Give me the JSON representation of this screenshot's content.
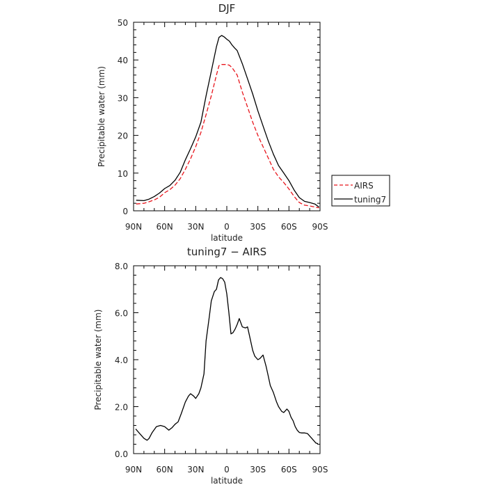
{
  "chart_data": [
    {
      "type": "line",
      "title": "DJF",
      "xlabel": "latitude",
      "ylabel": "Precipitable water (mm)",
      "xlim": [
        90,
        -90
      ],
      "ylim": [
        0,
        50
      ],
      "x_ticks": [
        90,
        60,
        30,
        0,
        -30,
        -60,
        -90
      ],
      "x_tick_labels": [
        "90N",
        "60N",
        "30N",
        "0",
        "30S",
        "60S",
        "90S"
      ],
      "y_ticks": [
        0,
        10,
        20,
        30,
        40,
        50
      ],
      "y_tick_labels": [
        "0",
        "10",
        "20",
        "30",
        "40",
        "50"
      ],
      "legend": "outside-right",
      "series": [
        {
          "name": "AIRS",
          "color": "#e8141b",
          "style": "dashed",
          "x": [
            87.5,
            80,
            75,
            70,
            65,
            60,
            55,
            50,
            45,
            40,
            35,
            30,
            25,
            20,
            15,
            10,
            7.5,
            5,
            2.5,
            0,
            -2.5,
            -5,
            -7.5,
            -10,
            -15,
            -20,
            -25,
            -30,
            -35,
            -40,
            -45,
            -50,
            -55,
            -60,
            -65,
            -70,
            -75,
            -80,
            -85,
            -89
          ],
          "y": [
            1.8,
            2.0,
            2.4,
            2.9,
            3.6,
            4.8,
            5.6,
            6.8,
            8.5,
            11.0,
            13.8,
            17.0,
            20.8,
            25.5,
            30.5,
            36.0,
            38.5,
            38.8,
            38.8,
            38.8,
            38.6,
            38.0,
            37.0,
            36.0,
            31.5,
            27.5,
            23.5,
            20.0,
            17.0,
            14.0,
            11.0,
            9.0,
            7.5,
            5.8,
            3.8,
            2.2,
            1.5,
            1.3,
            1.0,
            0.8
          ]
        },
        {
          "name": "tuning7",
          "color": "#000000",
          "style": "solid",
          "x": [
            87.5,
            80,
            75,
            70,
            65,
            60,
            55,
            50,
            45,
            40,
            35,
            30,
            25,
            20,
            15,
            10,
            7.5,
            5,
            2.5,
            0,
            -2.5,
            -5,
            -7.5,
            -10,
            -15,
            -20,
            -25,
            -30,
            -35,
            -40,
            -45,
            -50,
            -55,
            -60,
            -65,
            -70,
            -75,
            -80,
            -85,
            -89
          ],
          "y": [
            2.8,
            2.7,
            3.1,
            3.8,
            4.7,
            5.9,
            6.7,
            8.1,
            10.2,
            13.5,
            16.5,
            19.6,
            23.5,
            30.5,
            37.0,
            43.5,
            46.0,
            46.5,
            46.1,
            45.5,
            45.0,
            44.0,
            43.2,
            42.5,
            39.0,
            35.0,
            31.0,
            26.5,
            22.5,
            18.5,
            15.0,
            12.0,
            10.0,
            8.0,
            5.5,
            3.5,
            2.5,
            2.2,
            1.8,
            1.0
          ]
        }
      ]
    },
    {
      "type": "line",
      "title": "tuning7 − AIRS",
      "xlabel": "latitude",
      "ylabel": "Precipitable water (mm)",
      "xlim": [
        90,
        -90
      ],
      "ylim": [
        0,
        8
      ],
      "x_ticks": [
        90,
        60,
        30,
        0,
        -30,
        -60,
        -90
      ],
      "x_tick_labels": [
        "90N",
        "60N",
        "30N",
        "0",
        "30S",
        "60S",
        "90S"
      ],
      "y_ticks": [
        0,
        2,
        4,
        6,
        8
      ],
      "y_tick_labels": [
        "0.0",
        "2.0",
        "4.0",
        "6.0",
        "8.0"
      ],
      "series": [
        {
          "color": "#000000",
          "style": "solid",
          "x": [
            88,
            84,
            80,
            77,
            75,
            72,
            68,
            64,
            60,
            56,
            53,
            50,
            47,
            44,
            40,
            37,
            35,
            32,
            30,
            27,
            25,
            22,
            20,
            17,
            15,
            12,
            10,
            8,
            6,
            4,
            2,
            0,
            -2,
            -4,
            -6,
            -8,
            -10,
            -12,
            -15,
            -18,
            -20,
            -22,
            -25,
            -27,
            -30,
            -32,
            -35,
            -38,
            -40,
            -42,
            -45,
            -48,
            -50,
            -53,
            -55,
            -58,
            -60,
            -62,
            -64,
            -66,
            -68,
            -70,
            -72,
            -75,
            -78,
            -82,
            -84,
            -86,
            -88
          ],
          "y": [
            1.05,
            0.85,
            0.65,
            0.57,
            0.65,
            0.9,
            1.15,
            1.2,
            1.15,
            1.0,
            1.1,
            1.25,
            1.35,
            1.7,
            2.2,
            2.45,
            2.55,
            2.45,
            2.35,
            2.55,
            2.8,
            3.4,
            4.8,
            5.8,
            6.5,
            6.9,
            7.0,
            7.4,
            7.5,
            7.45,
            7.3,
            6.8,
            6.0,
            5.1,
            5.15,
            5.3,
            5.5,
            5.75,
            5.4,
            5.35,
            5.4,
            5.0,
            4.4,
            4.15,
            4.0,
            4.05,
            4.2,
            3.7,
            3.3,
            2.9,
            2.6,
            2.2,
            2.0,
            1.8,
            1.75,
            1.9,
            1.8,
            1.55,
            1.4,
            1.15,
            1.0,
            0.9,
            0.88,
            0.88,
            0.85,
            0.65,
            0.55,
            0.45,
            0.42
          ]
        }
      ]
    }
  ]
}
